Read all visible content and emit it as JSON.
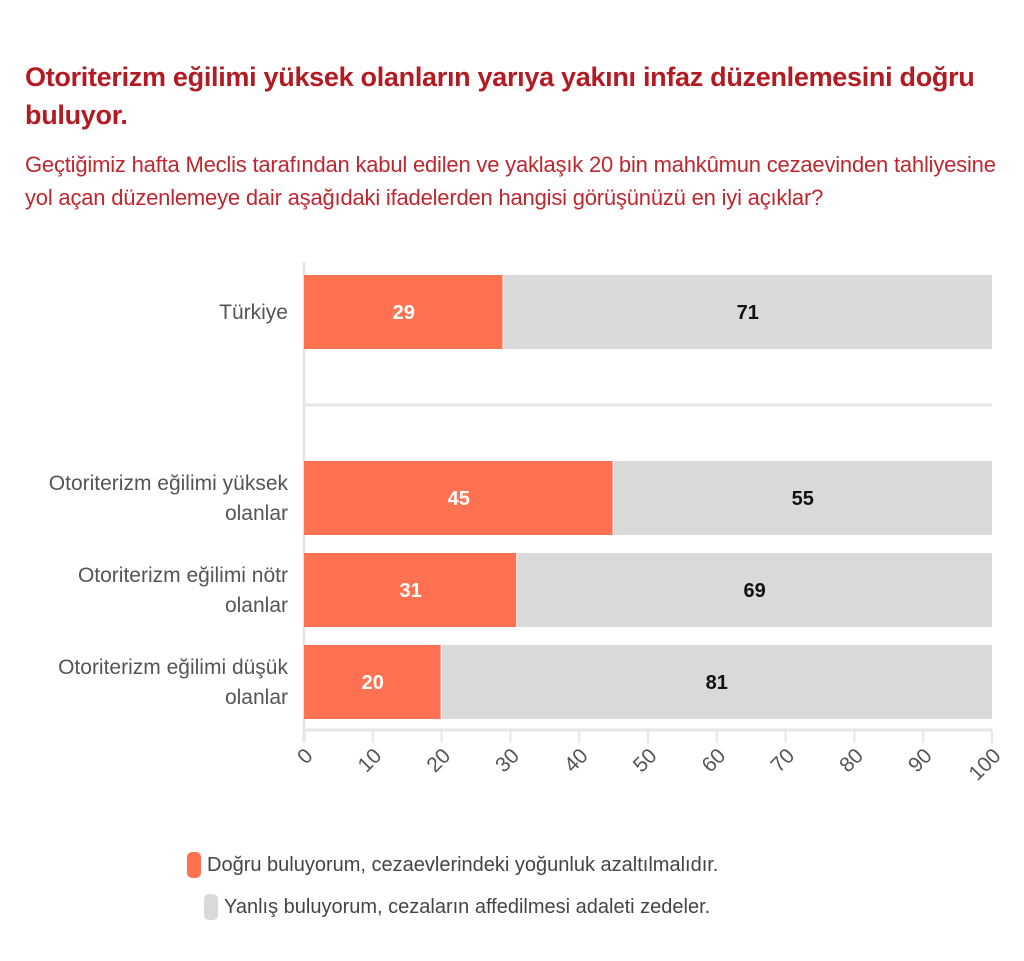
{
  "title": "Otoriterizm eğilimi yüksek olanların yarıya yakını infaz düzenlemesini doğru buluyor.",
  "subtitle": "Geçtiğimiz hafta Meclis tarafından kabul edilen ve yaklaşık 20 bin mahkûmun cezaevinden tahliyesine yol açan düzenlemeye dair aşağıdaki ifadelerden hangisi görüşünüzü en iyi açıklar?",
  "chart_data": {
    "type": "bar",
    "orientation": "horizontal",
    "stacked": true,
    "categories": [
      [
        "Türkiye"
      ],
      [
        "Otoriterizm eğilimi yüksek",
        "olanlar"
      ],
      [
        "Otoriterizm eğilimi nötr",
        "olanlar"
      ],
      [
        "Otoriterizm eğilimi düşük",
        "olanlar"
      ]
    ],
    "series": [
      {
        "name": "Doğru buluyorum, cezaevlerindeki yoğunluk azaltılmalıdır.",
        "color": "#ff7150",
        "values": [
          29,
          45,
          31,
          20
        ]
      },
      {
        "name": "Yanlış buluyorum, cezaların affedilmesi adaleti zedeler.",
        "color": "#d9d9d9",
        "values": [
          71,
          55,
          69,
          81
        ]
      }
    ],
    "xlim": [
      0,
      100
    ],
    "xticks": [
      "0",
      "10",
      "20",
      "30",
      "40",
      "50",
      "60",
      "70",
      "80",
      "90",
      "100"
    ],
    "legend_position": "bottom"
  }
}
